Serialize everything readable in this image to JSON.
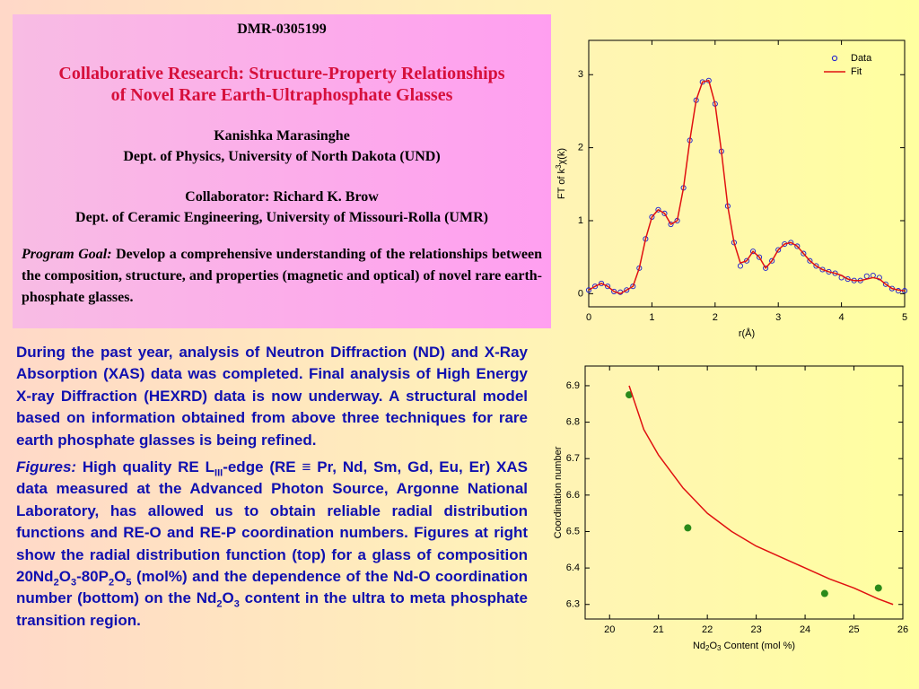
{
  "header": {
    "award": "DMR-0305199",
    "title_line1": "Collaborative Research: Structure-Property Relationships",
    "title_line2": "of Novel  Rare Earth-Ultraphosphate Glasses",
    "pi_name": "Kanishka Marasinghe",
    "pi_affiliation": "Dept. of Physics, University of North Dakota (UND)",
    "collaborator": "Collaborator: Richard K. Brow",
    "collaborator_affiliation": "Dept. of Ceramic Engineering, University of Missouri-Rolla (UMR)",
    "goal_label": "Program Goal:",
    "goal_text": "  Develop a comprehensive understanding of the relationships between the composition, structure, and properties (magnetic and optical) of novel rare earth-phosphate glasses."
  },
  "body": {
    "paragraph1": "During the past year, analysis of Neutron Diffraction (ND) and X-Ray Absorption (XAS) data was completed. Final analysis of High Energy X-ray Diffraction (HEXRD) data is now underway. A structural model based on information obtained from above three techniques for rare earth phosphate glasses is being refined.",
    "figures_label": "Figures:",
    "paragraph2": [
      {
        "text": " High quality RE L"
      },
      {
        "sub": "III"
      },
      {
        "text": "-edge (RE ≡ Pr, Nd, Sm, Gd, Eu, Er)  XAS data measured at the Advanced Photon Source, Argonne National Laboratory, has allowed us to obtain reliable radial distribution functions and RE-O and RE-P coordination numbers.   Figures at right show the radial distribution function (top) for a glass of composition 20Nd"
      },
      {
        "sub": "2"
      },
      {
        "text": "O"
      },
      {
        "sub": "3"
      },
      {
        "text": "-80P"
      },
      {
        "sub": "2"
      },
      {
        "text": "O"
      },
      {
        "sub": "5"
      },
      {
        "text": " (mol%) and the dependence of the Nd-O coordination number (bottom)  on the Nd"
      },
      {
        "sub": "2"
      },
      {
        "text": "O"
      },
      {
        "sub": "3"
      },
      {
        "text": " content in the ultra to meta phosphate transition region."
      }
    ]
  },
  "chart_data": [
    {
      "type": "line",
      "x_label": [
        {
          "text": "r(Å)"
        }
      ],
      "y_label": [
        {
          "text": "FT of k"
        },
        {
          "sup": "3"
        },
        {
          "text": "χ(k)"
        }
      ],
      "x": [
        0,
        0.1,
        0.2,
        0.3,
        0.4,
        0.5,
        0.6,
        0.7,
        0.8,
        0.9,
        1.0,
        1.1,
        1.2,
        1.3,
        1.4,
        1.5,
        1.6,
        1.7,
        1.8,
        1.9,
        2.0,
        2.1,
        2.2,
        2.3,
        2.4,
        2.5,
        2.6,
        2.7,
        2.8,
        2.9,
        3.0,
        3.1,
        3.2,
        3.3,
        3.4,
        3.5,
        3.6,
        3.7,
        3.8,
        3.9,
        4.0,
        4.1,
        4.2,
        4.3,
        4.4,
        4.5,
        4.6,
        4.7,
        4.8,
        4.9,
        5.0
      ],
      "series": [
        {
          "name": "Data",
          "mode": "markers",
          "color": "#1a1ad0",
          "values": [
            0.05,
            0.1,
            0.14,
            0.1,
            0.03,
            0.02,
            0.05,
            0.1,
            0.35,
            0.75,
            1.05,
            1.15,
            1.1,
            0.95,
            1.0,
            1.45,
            2.1,
            2.65,
            2.9,
            2.92,
            2.6,
            1.95,
            1.2,
            0.7,
            0.38,
            0.45,
            0.58,
            0.5,
            0.35,
            0.45,
            0.6,
            0.68,
            0.7,
            0.65,
            0.55,
            0.45,
            0.38,
            0.33,
            0.3,
            0.28,
            0.22,
            0.2,
            0.18,
            0.18,
            0.24,
            0.25,
            0.22,
            0.13,
            0.07,
            0.04,
            0.04
          ]
        },
        {
          "name": "Fit",
          "mode": "line",
          "color": "#e01010",
          "values": [
            0.05,
            0.1,
            0.14,
            0.1,
            0.03,
            0.0,
            0.05,
            0.1,
            0.35,
            0.75,
            1.05,
            1.15,
            1.1,
            0.95,
            1.0,
            1.45,
            2.1,
            2.65,
            2.9,
            2.92,
            2.6,
            1.95,
            1.2,
            0.7,
            0.42,
            0.45,
            0.58,
            0.5,
            0.35,
            0.45,
            0.6,
            0.68,
            0.7,
            0.65,
            0.55,
            0.45,
            0.38,
            0.33,
            0.3,
            0.28,
            0.25,
            0.2,
            0.18,
            0.18,
            0.2,
            0.22,
            0.2,
            0.13,
            0.07,
            0.05,
            0.04
          ]
        }
      ],
      "xlim": [
        0,
        5
      ],
      "ylim": [
        -0.18,
        3.47
      ],
      "xticks": [
        0,
        1,
        2,
        3,
        4,
        5
      ],
      "yticks": [
        0,
        1,
        2,
        3
      ],
      "legend": "top-right"
    },
    {
      "type": "line",
      "x_label": [
        {
          "text": "Nd"
        },
        {
          "sub": "2"
        },
        {
          "text": "O"
        },
        {
          "sub": "3"
        },
        {
          "text": " Content (mol %)"
        }
      ],
      "y_label": [
        {
          "text": "Coordination number"
        }
      ],
      "series": [
        {
          "mode": "markers",
          "color": "#2a8a1a",
          "x": [
            20.4,
            21.6,
            24.4,
            25.5
          ],
          "values": [
            6.875,
            6.51,
            6.33,
            6.345
          ]
        },
        {
          "mode": "line",
          "color": "#e01010",
          "x": [
            20.4,
            20.7,
            21.0,
            21.5,
            22.0,
            22.5,
            23.0,
            23.5,
            24.0,
            24.5,
            25.0,
            25.5,
            25.8
          ],
          "values": [
            6.9,
            6.78,
            6.71,
            6.62,
            6.55,
            6.5,
            6.46,
            6.43,
            6.4,
            6.37,
            6.345,
            6.315,
            6.3
          ]
        }
      ],
      "xlim": [
        19.5,
        26
      ],
      "ylim": [
        6.26,
        6.954
      ],
      "xticks": [
        20,
        21,
        22,
        23,
        24,
        25,
        26
      ],
      "yticks": [
        6.3,
        6.4,
        6.5,
        6.6,
        6.7,
        6.8,
        6.9
      ]
    }
  ]
}
